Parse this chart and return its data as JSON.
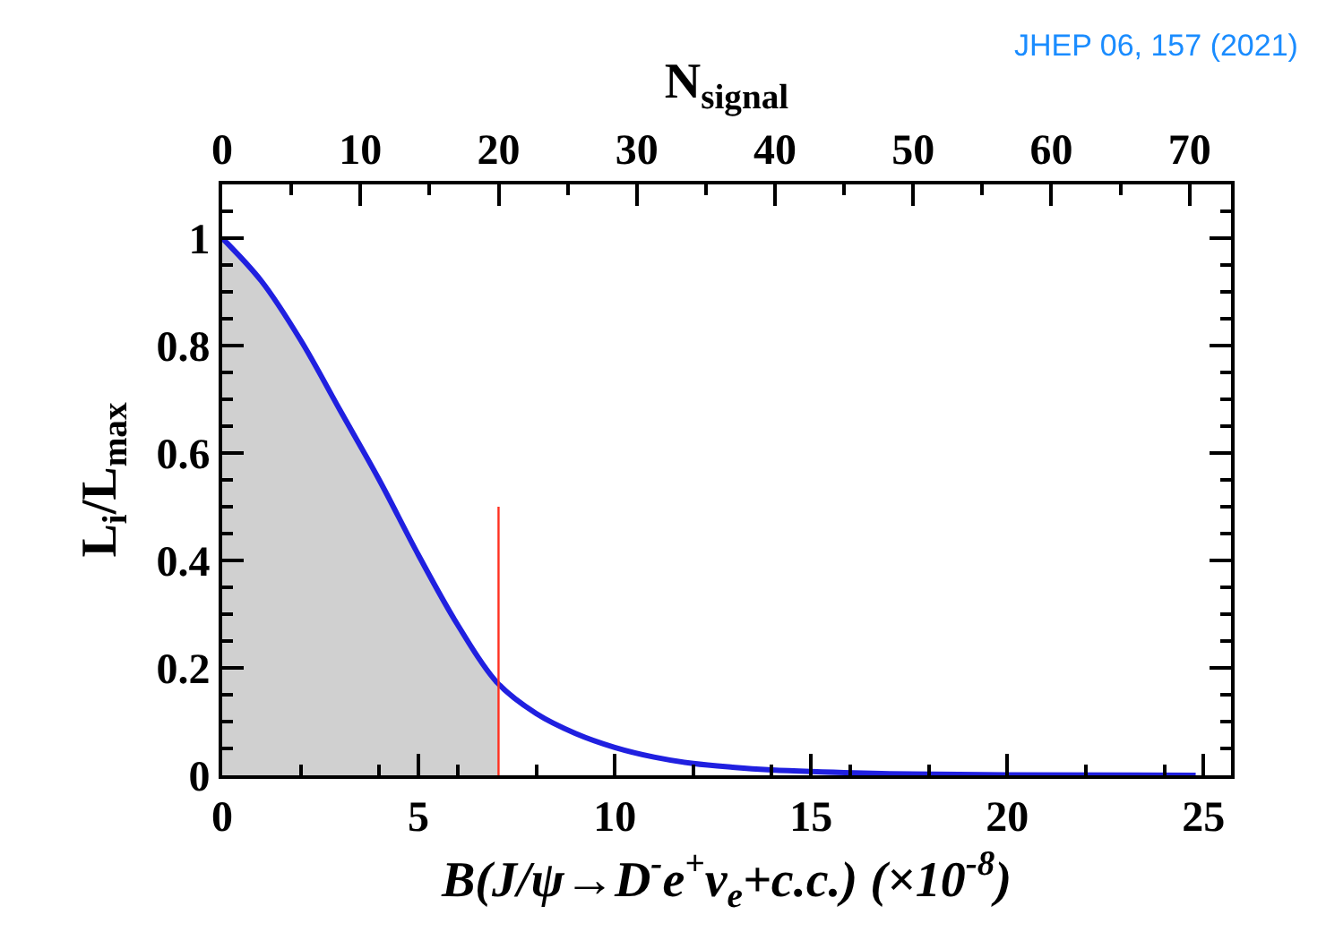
{
  "chart_data": {
    "type": "line",
    "xlabel": "B(J/ψ→D$^{-}$e$^{+}$ν$_{e}$+c.c.) (×10$^{-8}$)",
    "ylabel": "L$_{i}$/L$_{max}$",
    "x2label": "N$_{signal}$",
    "annotations": [
      "JHEP 06, 157 (2021)"
    ],
    "xlim": [
      0,
      25.7
    ],
    "xticks": [
      0,
      5,
      10,
      15,
      20,
      25
    ],
    "x2lim": [
      0,
      73
    ],
    "x2ticks": [
      0,
      10,
      20,
      30,
      40,
      50,
      60,
      70
    ],
    "ylim": [
      0,
      1.1
    ],
    "yticks": [
      0,
      0.2,
      0.4,
      0.6,
      0.8,
      1
    ],
    "series": [
      {
        "type": "area",
        "color": "#d0d0d0",
        "x": [
          0,
          1,
          2,
          3,
          4,
          5,
          6,
          7,
          7.04
        ],
        "values": [
          1.0,
          0.92,
          0.81,
          0.68,
          0.55,
          0.41,
          0.28,
          0.173,
          0.17
        ]
      },
      {
        "color": "#2020e0",
        "x": [
          0,
          1,
          2,
          3,
          4,
          5,
          6,
          7,
          8,
          9,
          10,
          11,
          12,
          13,
          14,
          15,
          17,
          20,
          24.8
        ],
        "values": [
          1.0,
          0.92,
          0.81,
          0.68,
          0.55,
          0.41,
          0.28,
          0.173,
          0.115,
          0.078,
          0.052,
          0.034,
          0.022,
          0.015,
          0.01,
          0.007,
          0.003,
          0.001,
          0
        ]
      },
      {
        "type": "line",
        "color": "#ff3020",
        "x": [
          7.04,
          7.04
        ],
        "values": [
          0.5,
          0
        ]
      }
    ]
  }
}
